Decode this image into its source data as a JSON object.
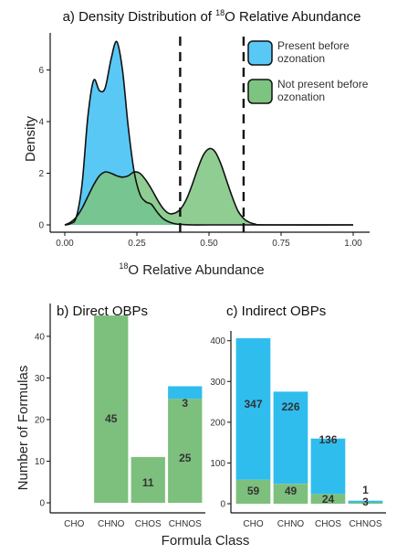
{
  "chart_data": [
    {
      "type": "area",
      "panel_title": "a) Density Distribution of ",
      "panel_title_sup": "18",
      "panel_title_rest": "O Relative Abundance",
      "xlabel_sup": "18",
      "xlabel_rest": "O Relative Abundance",
      "ylabel": "Density",
      "xlim": [
        0,
        1
      ],
      "ylim": [
        0,
        7.4
      ],
      "x_ticks": [
        "0.00",
        "0.25",
        "0.50",
        "0.75",
        "1.00"
      ],
      "x_tick_values": [
        0,
        0.25,
        0.5,
        0.75,
        1.0
      ],
      "y_ticks": [
        "0",
        "2",
        "4",
        "6"
      ],
      "y_tick_values": [
        0,
        2,
        4,
        6
      ],
      "vlines": [
        0.4,
        0.62
      ],
      "legend_placement": "top-right",
      "series": [
        {
          "name": "Present before ozonation",
          "color": "#5ac8f5",
          "x": [
            0.0,
            0.02,
            0.04,
            0.06,
            0.08,
            0.1,
            0.12,
            0.14,
            0.16,
            0.18,
            0.2,
            0.22,
            0.24,
            0.26,
            0.28,
            0.3,
            0.32,
            0.34,
            0.36,
            0.38,
            0.4,
            0.45,
            0.5,
            1.0
          ],
          "y": [
            0.0,
            0.05,
            0.3,
            1.6,
            4.2,
            5.6,
            5.2,
            5.3,
            6.4,
            7.1,
            6.0,
            3.8,
            2.1,
            1.2,
            0.9,
            0.8,
            0.5,
            0.25,
            0.12,
            0.05,
            0.02,
            0.0,
            0.0,
            0.0
          ]
        },
        {
          "name": "Not present before ozonation",
          "color": "#7cc47f",
          "x": [
            0.0,
            0.02,
            0.04,
            0.06,
            0.08,
            0.1,
            0.12,
            0.14,
            0.16,
            0.18,
            0.2,
            0.22,
            0.24,
            0.26,
            0.28,
            0.3,
            0.32,
            0.34,
            0.36,
            0.38,
            0.4,
            0.42,
            0.44,
            0.46,
            0.48,
            0.5,
            0.52,
            0.54,
            0.56,
            0.58,
            0.6,
            0.62,
            0.64,
            0.66,
            0.7,
            1.0
          ],
          "y": [
            0.0,
            0.1,
            0.3,
            0.65,
            1.1,
            1.55,
            1.9,
            2.05,
            2.0,
            1.9,
            1.85,
            1.9,
            2.05,
            2.0,
            1.75,
            1.4,
            1.0,
            0.65,
            0.45,
            0.45,
            0.6,
            0.95,
            1.5,
            2.15,
            2.7,
            2.95,
            2.85,
            2.4,
            1.75,
            1.1,
            0.55,
            0.25,
            0.1,
            0.03,
            0.0,
            0.0
          ]
        }
      ]
    },
    {
      "type": "bar",
      "panel_title": "b) Direct OBPs",
      "ylabel": "Number of Formulas",
      "categories": [
        "CHO",
        "CHNO",
        "CHOS",
        "CHNOS"
      ],
      "ylim": [
        0,
        47
      ],
      "y_ticks": [
        "0",
        "10",
        "20",
        "30",
        "40"
      ],
      "y_tick_values": [
        0,
        10,
        20,
        30,
        40
      ],
      "stack_order": [
        "Not present before ozonation",
        "Present before ozonation"
      ],
      "series": [
        {
          "name": "Not present before ozonation",
          "color": "#7dbf7d",
          "values": [
            0,
            45,
            11,
            25
          ],
          "labels": [
            "",
            "45",
            "11",
            "25"
          ]
        },
        {
          "name": "Present before ozonation",
          "color": "#2fbdee",
          "values": [
            0,
            0,
            0,
            3
          ],
          "labels": [
            "",
            "",
            "",
            "3"
          ]
        }
      ]
    },
    {
      "type": "bar",
      "panel_title": "c) Indirect OBPs",
      "xlabel": "Formula Class",
      "categories": [
        "CHO",
        "CHNO",
        "CHOS",
        "CHNOS"
      ],
      "ylim": [
        0,
        415
      ],
      "y_ticks": [
        "0",
        "100",
        "200",
        "300",
        "400"
      ],
      "y_tick_values": [
        0,
        100,
        200,
        300,
        400
      ],
      "stack_order": [
        "Not present before ozonation",
        "Present before ozonation"
      ],
      "series": [
        {
          "name": "Not present before ozonation",
          "color": "#7dbf7d",
          "values": [
            59,
            49,
            24,
            3
          ],
          "labels": [
            "59",
            "49",
            "24",
            "3"
          ]
        },
        {
          "name": "Present before ozonation",
          "color": "#2fbdee",
          "values": [
            347,
            226,
            136,
            1
          ],
          "labels": [
            "347",
            "226",
            "136",
            "1"
          ]
        }
      ]
    }
  ]
}
